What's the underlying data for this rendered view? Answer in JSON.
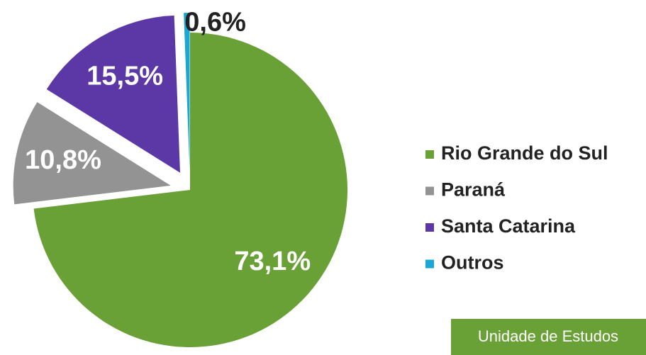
{
  "chart_data": {
    "type": "pie",
    "categories": [
      "Rio Grande do Sul",
      "Paraná",
      "Santa Catarina",
      "Outros"
    ],
    "values": [
      73.1,
      10.8,
      15.5,
      0.6
    ],
    "value_labels": [
      "73,1%",
      "10,8%",
      "15,5%",
      "0,6%"
    ],
    "colors": [
      "#6aa136",
      "#939393",
      "#5b38a6",
      "#1aa7d4"
    ],
    "legend": "right",
    "footer": "Unidade de Estudos"
  }
}
